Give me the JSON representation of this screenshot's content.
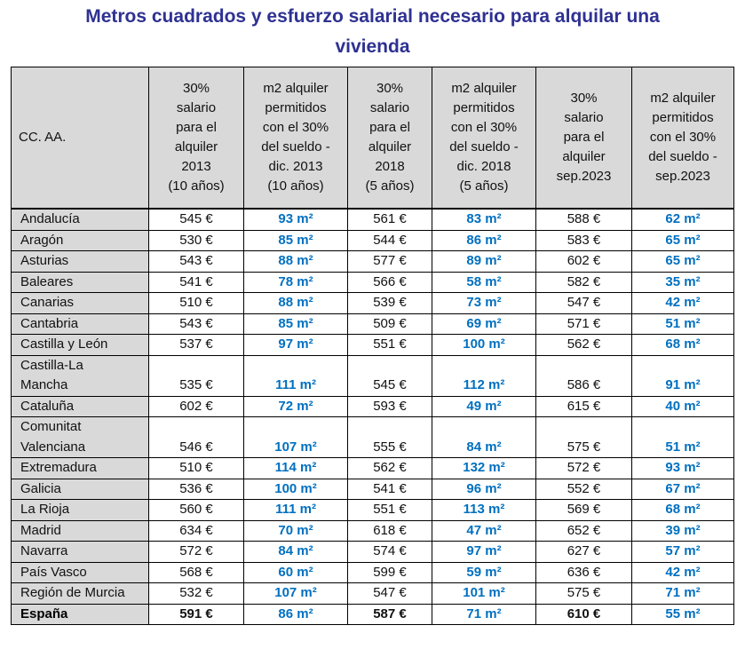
{
  "title": "Metros cuadrados y esfuerzo salarial necesario para alquilar una vivienda",
  "table": {
    "header": [
      "CC. AA.",
      "30%\nsalario\npara el\nalquiler\n2013\n(10 años)",
      "m2 alquiler\npermitidos\ncon el 30%\ndel sueldo -\ndic. 2013\n(10 años)",
      "30%\nsalario\npara el\nalquiler\n2018\n(5 años)",
      "m2 alquiler\npermitidos\ncon el 30%\ndel sueldo -\ndic. 2018\n(5 años)",
      "30%\nsalario\npara el\nalquiler\nsep.2023",
      "m2 alquiler\npermitidos\ncon el 30%\ndel sueldo -\nsep.2023"
    ],
    "rows": [
      [
        "Andalucía",
        "545 €",
        "93 m²",
        "561 €",
        "83 m²",
        "588 €",
        "62 m²"
      ],
      [
        "Aragón",
        "530 €",
        "85 m²",
        "544 €",
        "86 m²",
        "583 €",
        "65 m²"
      ],
      [
        "Asturias",
        "543 €",
        "88 m²",
        "577 €",
        "89 m²",
        "602 €",
        "65 m²"
      ],
      [
        "Baleares",
        "541 €",
        "78 m²",
        "566 €",
        "58 m²",
        "582 €",
        "35 m²"
      ],
      [
        "Canarias",
        "510 €",
        "88 m²",
        "539 €",
        "73 m²",
        "547 €",
        "42 m²"
      ],
      [
        "Cantabria",
        "543 €",
        "85 m²",
        "509 €",
        "69 m²",
        "571 €",
        "51 m²"
      ],
      [
        "Castilla y León",
        "537 €",
        "97 m²",
        "551 €",
        "100 m²",
        "562 €",
        "68 m²"
      ],
      [
        "Castilla-La\nMancha",
        "535 €",
        "111 m²",
        "545 €",
        "112 m²",
        "586 €",
        "91 m²"
      ],
      [
        "Cataluña",
        "602 €",
        "72 m²",
        "593 €",
        "49 m²",
        "615 €",
        "40 m²"
      ],
      [
        "Comunitat\nValenciana",
        "546 €",
        "107 m²",
        "555 €",
        "84 m²",
        "575 €",
        "51 m²"
      ],
      [
        "Extremadura",
        "510 €",
        "114 m²",
        "562 €",
        "132 m²",
        "572 €",
        "93 m²"
      ],
      [
        "Galicia",
        "536 €",
        "100 m²",
        "541 €",
        "96 m²",
        "552 €",
        "67 m²"
      ],
      [
        "La Rioja",
        "560 €",
        "111 m²",
        "551 €",
        "113 m²",
        "569 €",
        "68 m²"
      ],
      [
        "Madrid",
        "634 €",
        "70 m²",
        "618 €",
        "47 m²",
        "652 €",
        "39 m²"
      ],
      [
        "Navarra",
        "572 €",
        "84 m²",
        "574 €",
        "97 m²",
        "627 €",
        "57 m²"
      ],
      [
        "País Vasco",
        "568 €",
        "60 m²",
        "599 €",
        "59 m²",
        "636 €",
        "42 m²"
      ],
      [
        "Región de Murcia",
        "532 €",
        "107 m²",
        "547 €",
        "101 m²",
        "575 €",
        "71 m²"
      ],
      [
        "España",
        "591 €",
        "86 m²",
        "587 €",
        "71 m²",
        "610 €",
        "55 m²"
      ]
    ]
  }
}
